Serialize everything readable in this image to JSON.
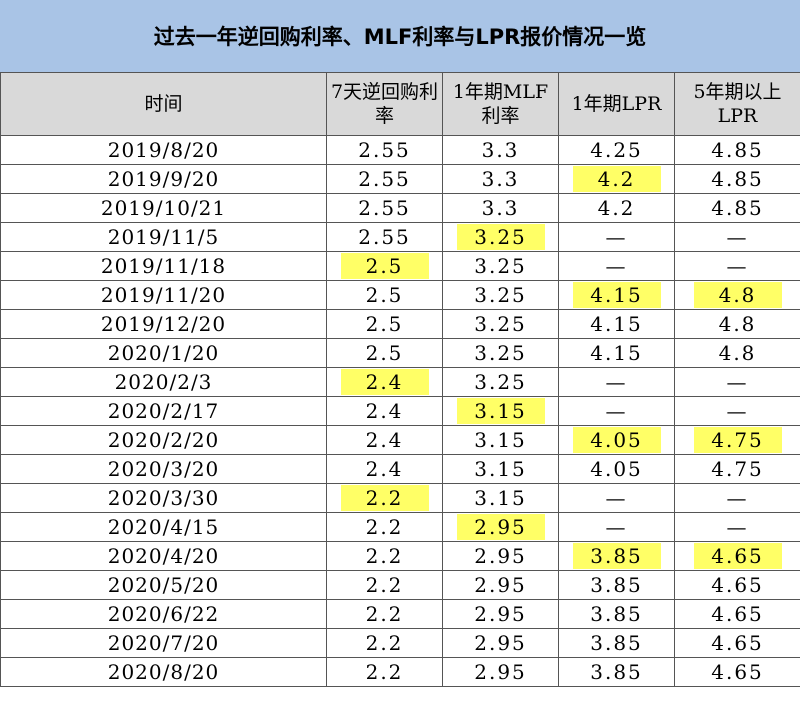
{
  "title": "过去一年逆回购利率、MLF利率与LPR报价情况一览",
  "headers": [
    "时间",
    "7天逆回购利率",
    "1年期MLF利率",
    "1年期LPR",
    "5年期以上LPR"
  ],
  "colors": {
    "title_bg": "#a9c4e6",
    "header_bg": "#d9d9d9",
    "highlight": "#ffff66"
  },
  "rows": [
    {
      "date": "2019/8/20",
      "rr": "2.55",
      "mlf": "3.3",
      "lpr1": "4.25",
      "lpr5": "4.85",
      "hl": []
    },
    {
      "date": "2019/9/20",
      "rr": "2.55",
      "mlf": "3.3",
      "lpr1": "4.2",
      "lpr5": "4.85",
      "hl": [
        "lpr1"
      ]
    },
    {
      "date": "2019/10/21",
      "rr": "2.55",
      "mlf": "3.3",
      "lpr1": "4.2",
      "lpr5": "4.85",
      "hl": []
    },
    {
      "date": "2019/11/5",
      "rr": "2.55",
      "mlf": "3.25",
      "lpr1": "—",
      "lpr5": "—",
      "hl": [
        "mlf"
      ]
    },
    {
      "date": "2019/11/18",
      "rr": "2.5",
      "mlf": "3.25",
      "lpr1": "—",
      "lpr5": "—",
      "hl": [
        "rr"
      ]
    },
    {
      "date": "2019/11/20",
      "rr": "2.5",
      "mlf": "3.25",
      "lpr1": "4.15",
      "lpr5": "4.8",
      "hl": [
        "lpr1",
        "lpr5"
      ]
    },
    {
      "date": "2019/12/20",
      "rr": "2.5",
      "mlf": "3.25",
      "lpr1": "4.15",
      "lpr5": "4.8",
      "hl": []
    },
    {
      "date": "2020/1/20",
      "rr": "2.5",
      "mlf": "3.25",
      "lpr1": "4.15",
      "lpr5": "4.8",
      "hl": []
    },
    {
      "date": "2020/2/3",
      "rr": "2.4",
      "mlf": "3.25",
      "lpr1": "—",
      "lpr5": "—",
      "hl": [
        "rr"
      ]
    },
    {
      "date": "2020/2/17",
      "rr": "2.4",
      "mlf": "3.15",
      "lpr1": "—",
      "lpr5": "—",
      "hl": [
        "mlf"
      ]
    },
    {
      "date": "2020/2/20",
      "rr": "2.4",
      "mlf": "3.15",
      "lpr1": "4.05",
      "lpr5": "4.75",
      "hl": [
        "lpr1",
        "lpr5"
      ]
    },
    {
      "date": "2020/3/20",
      "rr": "2.4",
      "mlf": "3.15",
      "lpr1": "4.05",
      "lpr5": "4.75",
      "hl": []
    },
    {
      "date": "2020/3/30",
      "rr": "2.2",
      "mlf": "3.15",
      "lpr1": "—",
      "lpr5": "—",
      "hl": [
        "rr"
      ]
    },
    {
      "date": "2020/4/15",
      "rr": "2.2",
      "mlf": "2.95",
      "lpr1": "—",
      "lpr5": "—",
      "hl": [
        "mlf"
      ]
    },
    {
      "date": "2020/4/20",
      "rr": "2.2",
      "mlf": "2.95",
      "lpr1": "3.85",
      "lpr5": "4.65",
      "hl": [
        "lpr1",
        "lpr5"
      ]
    },
    {
      "date": "2020/5/20",
      "rr": "2.2",
      "mlf": "2.95",
      "lpr1": "3.85",
      "lpr5": "4.65",
      "hl": []
    },
    {
      "date": "2020/6/22",
      "rr": "2.2",
      "mlf": "2.95",
      "lpr1": "3.85",
      "lpr5": "4.65",
      "hl": []
    },
    {
      "date": "2020/7/20",
      "rr": "2.2",
      "mlf": "2.95",
      "lpr1": "3.85",
      "lpr5": "4.65",
      "hl": []
    },
    {
      "date": "2020/8/20",
      "rr": "2.2",
      "mlf": "2.95",
      "lpr1": "3.85",
      "lpr5": "4.65",
      "hl": []
    }
  ]
}
